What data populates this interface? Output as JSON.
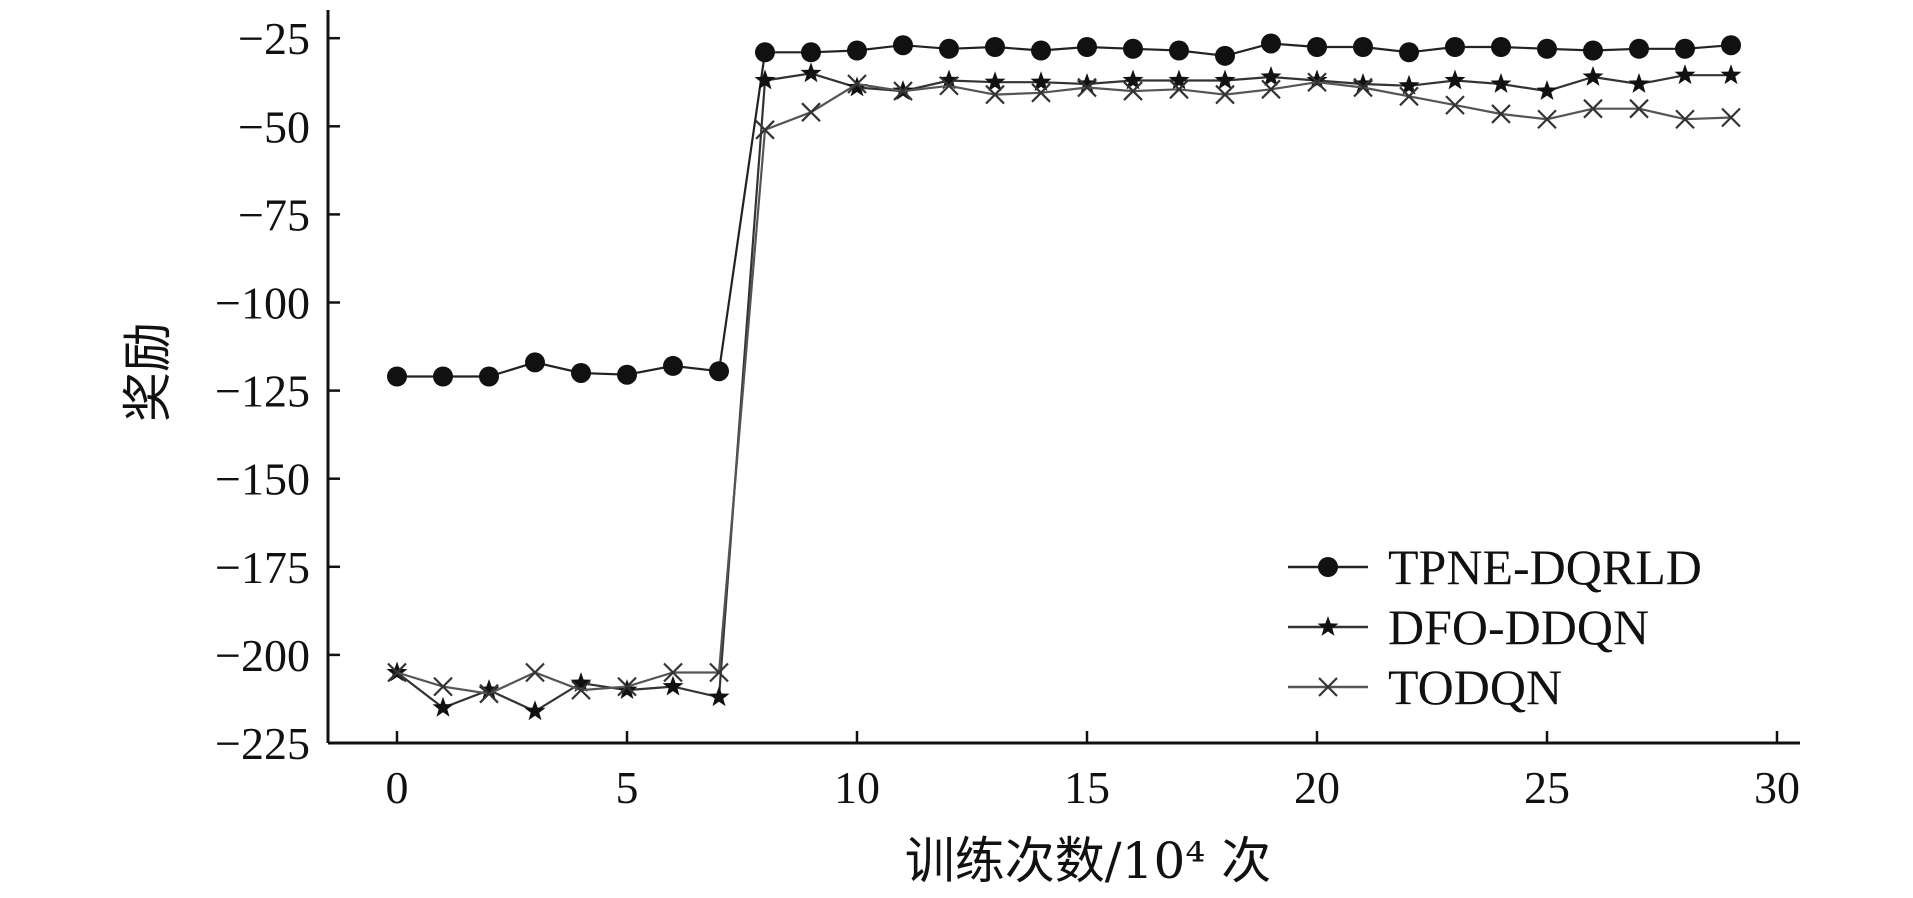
{
  "chart_data": {
    "type": "line",
    "xlabel": "训练次数/10⁴ 次",
    "ylabel": "奖励",
    "xlim": [
      -1.5,
      30.5
    ],
    "ylim": [
      -225,
      -17
    ],
    "xticks": [
      0,
      5,
      10,
      15,
      20,
      25,
      30
    ],
    "yticks": [
      -25,
      -50,
      -75,
      -100,
      -125,
      -150,
      -175,
      -200,
      -225
    ],
    "xtick_labels": [
      "0",
      "5",
      "10",
      "15",
      "20",
      "25",
      "30"
    ],
    "ytick_labels": [
      "−25",
      "−50",
      "−75",
      "−100",
      "−125",
      "−150",
      "−175",
      "−200",
      "−225"
    ],
    "grid": false,
    "legend_position": "bottom-right",
    "x": [
      0,
      1,
      2,
      3,
      4,
      5,
      6,
      7,
      8,
      9,
      10,
      11,
      12,
      13,
      14,
      15,
      16,
      17,
      18,
      19,
      20,
      21,
      22,
      23,
      24,
      25,
      26,
      27,
      28,
      29
    ],
    "series": [
      {
        "name": "TPNE-DQRLD",
        "marker": "circle",
        "values": [
          -121,
          -121,
          -121,
          -117,
          -120,
          -120.5,
          -118,
          -119.5,
          -29,
          -29,
          -28.5,
          -27,
          -28,
          -27.5,
          -28.5,
          -27.5,
          -28,
          -28.5,
          -30,
          -26.5,
          -27.5,
          -27.5,
          -29,
          -27.5,
          -27.5,
          -28,
          -28.5,
          -28,
          -28,
          -27
        ]
      },
      {
        "name": "DFO-DDQN",
        "marker": "star",
        "values": [
          -205,
          -215,
          -210,
          -216,
          -208,
          -210,
          -209,
          -212,
          -37,
          -35,
          -39,
          -40,
          -37,
          -37.5,
          -37.5,
          -38,
          -37,
          -37,
          -37,
          -36,
          -37,
          -38,
          -38.5,
          -37,
          -38,
          -40,
          -36,
          -38,
          -35.5,
          -35.5
        ]
      },
      {
        "name": "TODQN",
        "marker": "x",
        "values": [
          -205,
          -209,
          -211,
          -205,
          -210,
          -209,
          -205,
          -205,
          -51,
          -46,
          -38,
          -40,
          -38.5,
          -41,
          -40.5,
          -39,
          -40,
          -39.5,
          -41,
          -39.5,
          -37.5,
          -39,
          -41.5,
          -44,
          -46.5,
          -48,
          -45,
          -45,
          -48,
          -47.5
        ]
      }
    ]
  }
}
